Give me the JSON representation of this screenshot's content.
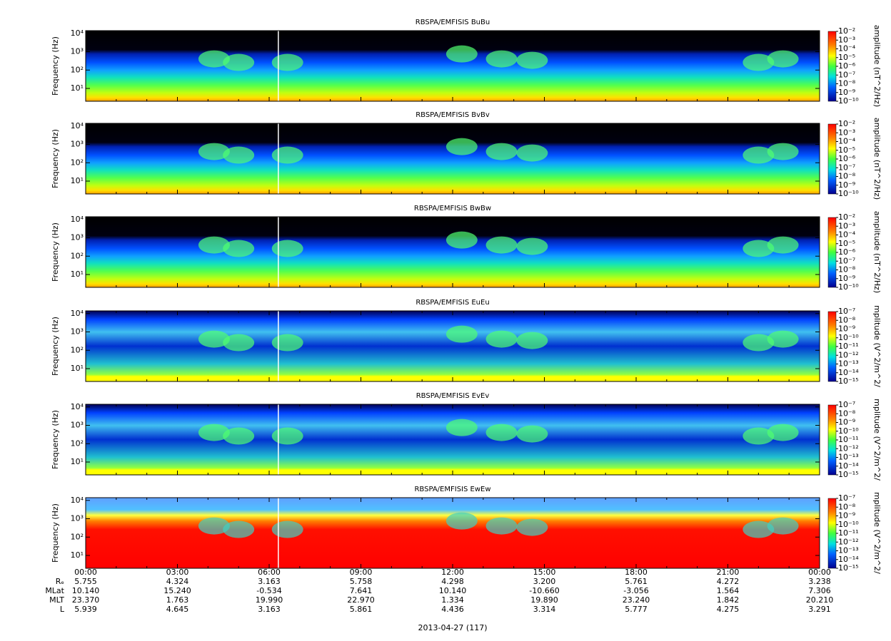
{
  "chart_data": [
    {
      "type": "spectrogram",
      "title": "RBSPA/EMFISIS  BuBu",
      "ylabel": "Frequency (Hz)",
      "yscale": "log",
      "ylim": [
        2,
        14000
      ],
      "yticks": [
        {
          "value": 10,
          "label": "10¹"
        },
        {
          "value": 100,
          "label": "10²"
        },
        {
          "value": 1000,
          "label": "10³"
        },
        {
          "value": 10000,
          "label": "10⁴"
        }
      ],
      "colorbar": {
        "label": "amplitude (nT^2/Hz)",
        "scale": "log",
        "lim": [
          1e-10,
          0.01
        ],
        "ticks": [
          {
            "value": 0.01,
            "label": "10⁻²"
          },
          {
            "value": 0.001,
            "label": "10⁻³"
          },
          {
            "value": 0.0001,
            "label": "10⁻⁴"
          },
          {
            "value": 1e-05,
            "label": "10⁻⁵"
          },
          {
            "value": 1e-06,
            "label": "10⁻⁶"
          },
          {
            "value": 1e-07,
            "label": "10⁻⁷"
          },
          {
            "value": 1e-08,
            "label": "10⁻⁸"
          },
          {
            "value": 1e-09,
            "label": "10⁻⁹"
          },
          {
            "value": 1e-10,
            "label": "10⁻¹⁰"
          }
        ]
      }
    },
    {
      "type": "spectrogram",
      "title": "RBSPA/EMFISIS  BvBv",
      "ylabel": "Frequency (Hz)",
      "yscale": "log",
      "ylim": [
        2,
        14000
      ],
      "yticks": [
        {
          "value": 10,
          "label": "10¹"
        },
        {
          "value": 100,
          "label": "10²"
        },
        {
          "value": 1000,
          "label": "10³"
        },
        {
          "value": 10000,
          "label": "10⁴"
        }
      ],
      "colorbar": {
        "label": "amplitude (nT^2/Hz)",
        "scale": "log",
        "lim": [
          1e-10,
          0.01
        ],
        "ticks": [
          {
            "value": 0.01,
            "label": "10⁻²"
          },
          {
            "value": 0.001,
            "label": "10⁻³"
          },
          {
            "value": 0.0001,
            "label": "10⁻⁴"
          },
          {
            "value": 1e-05,
            "label": "10⁻⁵"
          },
          {
            "value": 1e-06,
            "label": "10⁻⁶"
          },
          {
            "value": 1e-07,
            "label": "10⁻⁷"
          },
          {
            "value": 1e-08,
            "label": "10⁻⁸"
          },
          {
            "value": 1e-09,
            "label": "10⁻⁹"
          },
          {
            "value": 1e-10,
            "label": "10⁻¹⁰"
          }
        ]
      }
    },
    {
      "type": "spectrogram",
      "title": "RBSPA/EMFISIS  BwBw",
      "ylabel": "Frequency (Hz)",
      "yscale": "log",
      "ylim": [
        2,
        14000
      ],
      "yticks": [
        {
          "value": 10,
          "label": "10¹"
        },
        {
          "value": 100,
          "label": "10²"
        },
        {
          "value": 1000,
          "label": "10³"
        },
        {
          "value": 10000,
          "label": "10⁴"
        }
      ],
      "colorbar": {
        "label": "amplitude (nT^2/Hz)",
        "scale": "log",
        "lim": [
          1e-10,
          0.01
        ],
        "ticks": [
          {
            "value": 0.01,
            "label": "10⁻²"
          },
          {
            "value": 0.001,
            "label": "10⁻³"
          },
          {
            "value": 0.0001,
            "label": "10⁻⁴"
          },
          {
            "value": 1e-05,
            "label": "10⁻⁵"
          },
          {
            "value": 1e-06,
            "label": "10⁻⁶"
          },
          {
            "value": 1e-07,
            "label": "10⁻⁷"
          },
          {
            "value": 1e-08,
            "label": "10⁻⁸"
          },
          {
            "value": 1e-09,
            "label": "10⁻⁹"
          },
          {
            "value": 1e-10,
            "label": "10⁻¹⁰"
          }
        ]
      }
    },
    {
      "type": "spectrogram",
      "title": "RBSPA/EMFISIS  EuEu",
      "ylabel": "Frequency (Hz)",
      "yscale": "log",
      "ylim": [
        2,
        14000
      ],
      "yticks": [
        {
          "value": 10,
          "label": "10¹"
        },
        {
          "value": 100,
          "label": "10²"
        },
        {
          "value": 1000,
          "label": "10³"
        },
        {
          "value": 10000,
          "label": "10⁴"
        }
      ],
      "colorbar": {
        "label": "mplitude (V^2/m^2/",
        "scale": "log",
        "lim": [
          1e-15,
          1e-07
        ],
        "ticks": [
          {
            "value": 1e-07,
            "label": "10⁻⁷"
          },
          {
            "value": 1e-08,
            "label": "10⁻⁸"
          },
          {
            "value": 1e-09,
            "label": "10⁻⁹"
          },
          {
            "value": 1e-10,
            "label": "10⁻¹⁰"
          },
          {
            "value": 1e-11,
            "label": "10⁻¹¹"
          },
          {
            "value": 1e-12,
            "label": "10⁻¹²"
          },
          {
            "value": 1e-13,
            "label": "10⁻¹³"
          },
          {
            "value": 1e-14,
            "label": "10⁻¹⁴"
          },
          {
            "value": 1e-15,
            "label": "10⁻¹⁵"
          }
        ]
      }
    },
    {
      "type": "spectrogram",
      "title": "RBSPA/EMFISIS  EvEv",
      "ylabel": "Frequency (Hz)",
      "yscale": "log",
      "ylim": [
        2,
        14000
      ],
      "yticks": [
        {
          "value": 10,
          "label": "10¹"
        },
        {
          "value": 100,
          "label": "10²"
        },
        {
          "value": 1000,
          "label": "10³"
        },
        {
          "value": 10000,
          "label": "10⁴"
        }
      ],
      "colorbar": {
        "label": "mplitude (V^2/m^2/",
        "scale": "log",
        "lim": [
          1e-15,
          1e-07
        ],
        "ticks": [
          {
            "value": 1e-07,
            "label": "10⁻⁷"
          },
          {
            "value": 1e-08,
            "label": "10⁻⁸"
          },
          {
            "value": 1e-09,
            "label": "10⁻⁹"
          },
          {
            "value": 1e-10,
            "label": "10⁻¹⁰"
          },
          {
            "value": 1e-11,
            "label": "10⁻¹¹"
          },
          {
            "value": 1e-12,
            "label": "10⁻¹²"
          },
          {
            "value": 1e-13,
            "label": "10⁻¹³"
          },
          {
            "value": 1e-14,
            "label": "10⁻¹⁴"
          },
          {
            "value": 1e-15,
            "label": "10⁻¹⁵"
          }
        ]
      }
    },
    {
      "type": "spectrogram",
      "title": "RBSPA/EMFISIS  EwEw",
      "ylabel": "Frequency (Hz)",
      "yscale": "log",
      "ylim": [
        2,
        14000
      ],
      "yticks": [
        {
          "value": 10,
          "label": "10¹"
        },
        {
          "value": 100,
          "label": "10²"
        },
        {
          "value": 1000,
          "label": "10³"
        },
        {
          "value": 10000,
          "label": "10⁴"
        }
      ],
      "colorbar": {
        "label": "mplitude (V^2/m^2/",
        "scale": "log",
        "lim": [
          1e-15,
          1e-07
        ],
        "ticks": [
          {
            "value": 1e-07,
            "label": "10⁻⁷"
          },
          {
            "value": 1e-08,
            "label": "10⁻⁸"
          },
          {
            "value": 1e-09,
            "label": "10⁻⁹"
          },
          {
            "value": 1e-10,
            "label": "10⁻¹⁰"
          },
          {
            "value": 1e-11,
            "label": "10⁻¹¹"
          },
          {
            "value": 1e-12,
            "label": "10⁻¹²"
          },
          {
            "value": 1e-13,
            "label": "10⁻¹³"
          },
          {
            "value": 1e-14,
            "label": "10⁻¹⁴"
          },
          {
            "value": 1e-15,
            "label": "10⁻¹⁵"
          }
        ]
      }
    }
  ],
  "x_axis": {
    "xlim": [
      0,
      24
    ],
    "xticks": [
      {
        "value": 0,
        "label": "00:00"
      },
      {
        "value": 3,
        "label": "03:00"
      },
      {
        "value": 6,
        "label": "06:00"
      },
      {
        "value": 9,
        "label": "09:00"
      },
      {
        "value": 12,
        "label": "12:00"
      },
      {
        "value": 15,
        "label": "15:00"
      },
      {
        "value": 18,
        "label": "18:00"
      },
      {
        "value": 21,
        "label": "21:00"
      },
      {
        "value": 24,
        "label": "00:00"
      }
    ],
    "xminorticks": [
      1,
      2,
      4,
      5,
      7,
      8,
      10,
      11,
      13,
      14,
      16,
      17,
      19,
      20,
      22,
      23
    ],
    "date_label": "2013-04-27 (117)"
  },
  "ephemeris": [
    {
      "label": "Rₑ",
      "values": [
        "5.755",
        "4.324",
        "3.163",
        "5.758",
        "4.298",
        "3.200",
        "5.761",
        "4.272",
        "3.238"
      ]
    },
    {
      "label": "MLat",
      "values": [
        "10.140",
        "15.240",
        "-0.534",
        "7.641",
        "10.140",
        "-10.660",
        "-3.056",
        "1.564",
        "7.306"
      ]
    },
    {
      "label": "MLT",
      "values": [
        "23.370",
        "1.763",
        "19.990",
        "22.970",
        "1.334",
        "19.890",
        "23.240",
        "1.842",
        "20.210"
      ]
    },
    {
      "label": "L",
      "values": [
        "5.939",
        "4.645",
        "3.163",
        "5.861",
        "4.436",
        "3.314",
        "5.777",
        "4.275",
        "3.291"
      ]
    }
  ]
}
